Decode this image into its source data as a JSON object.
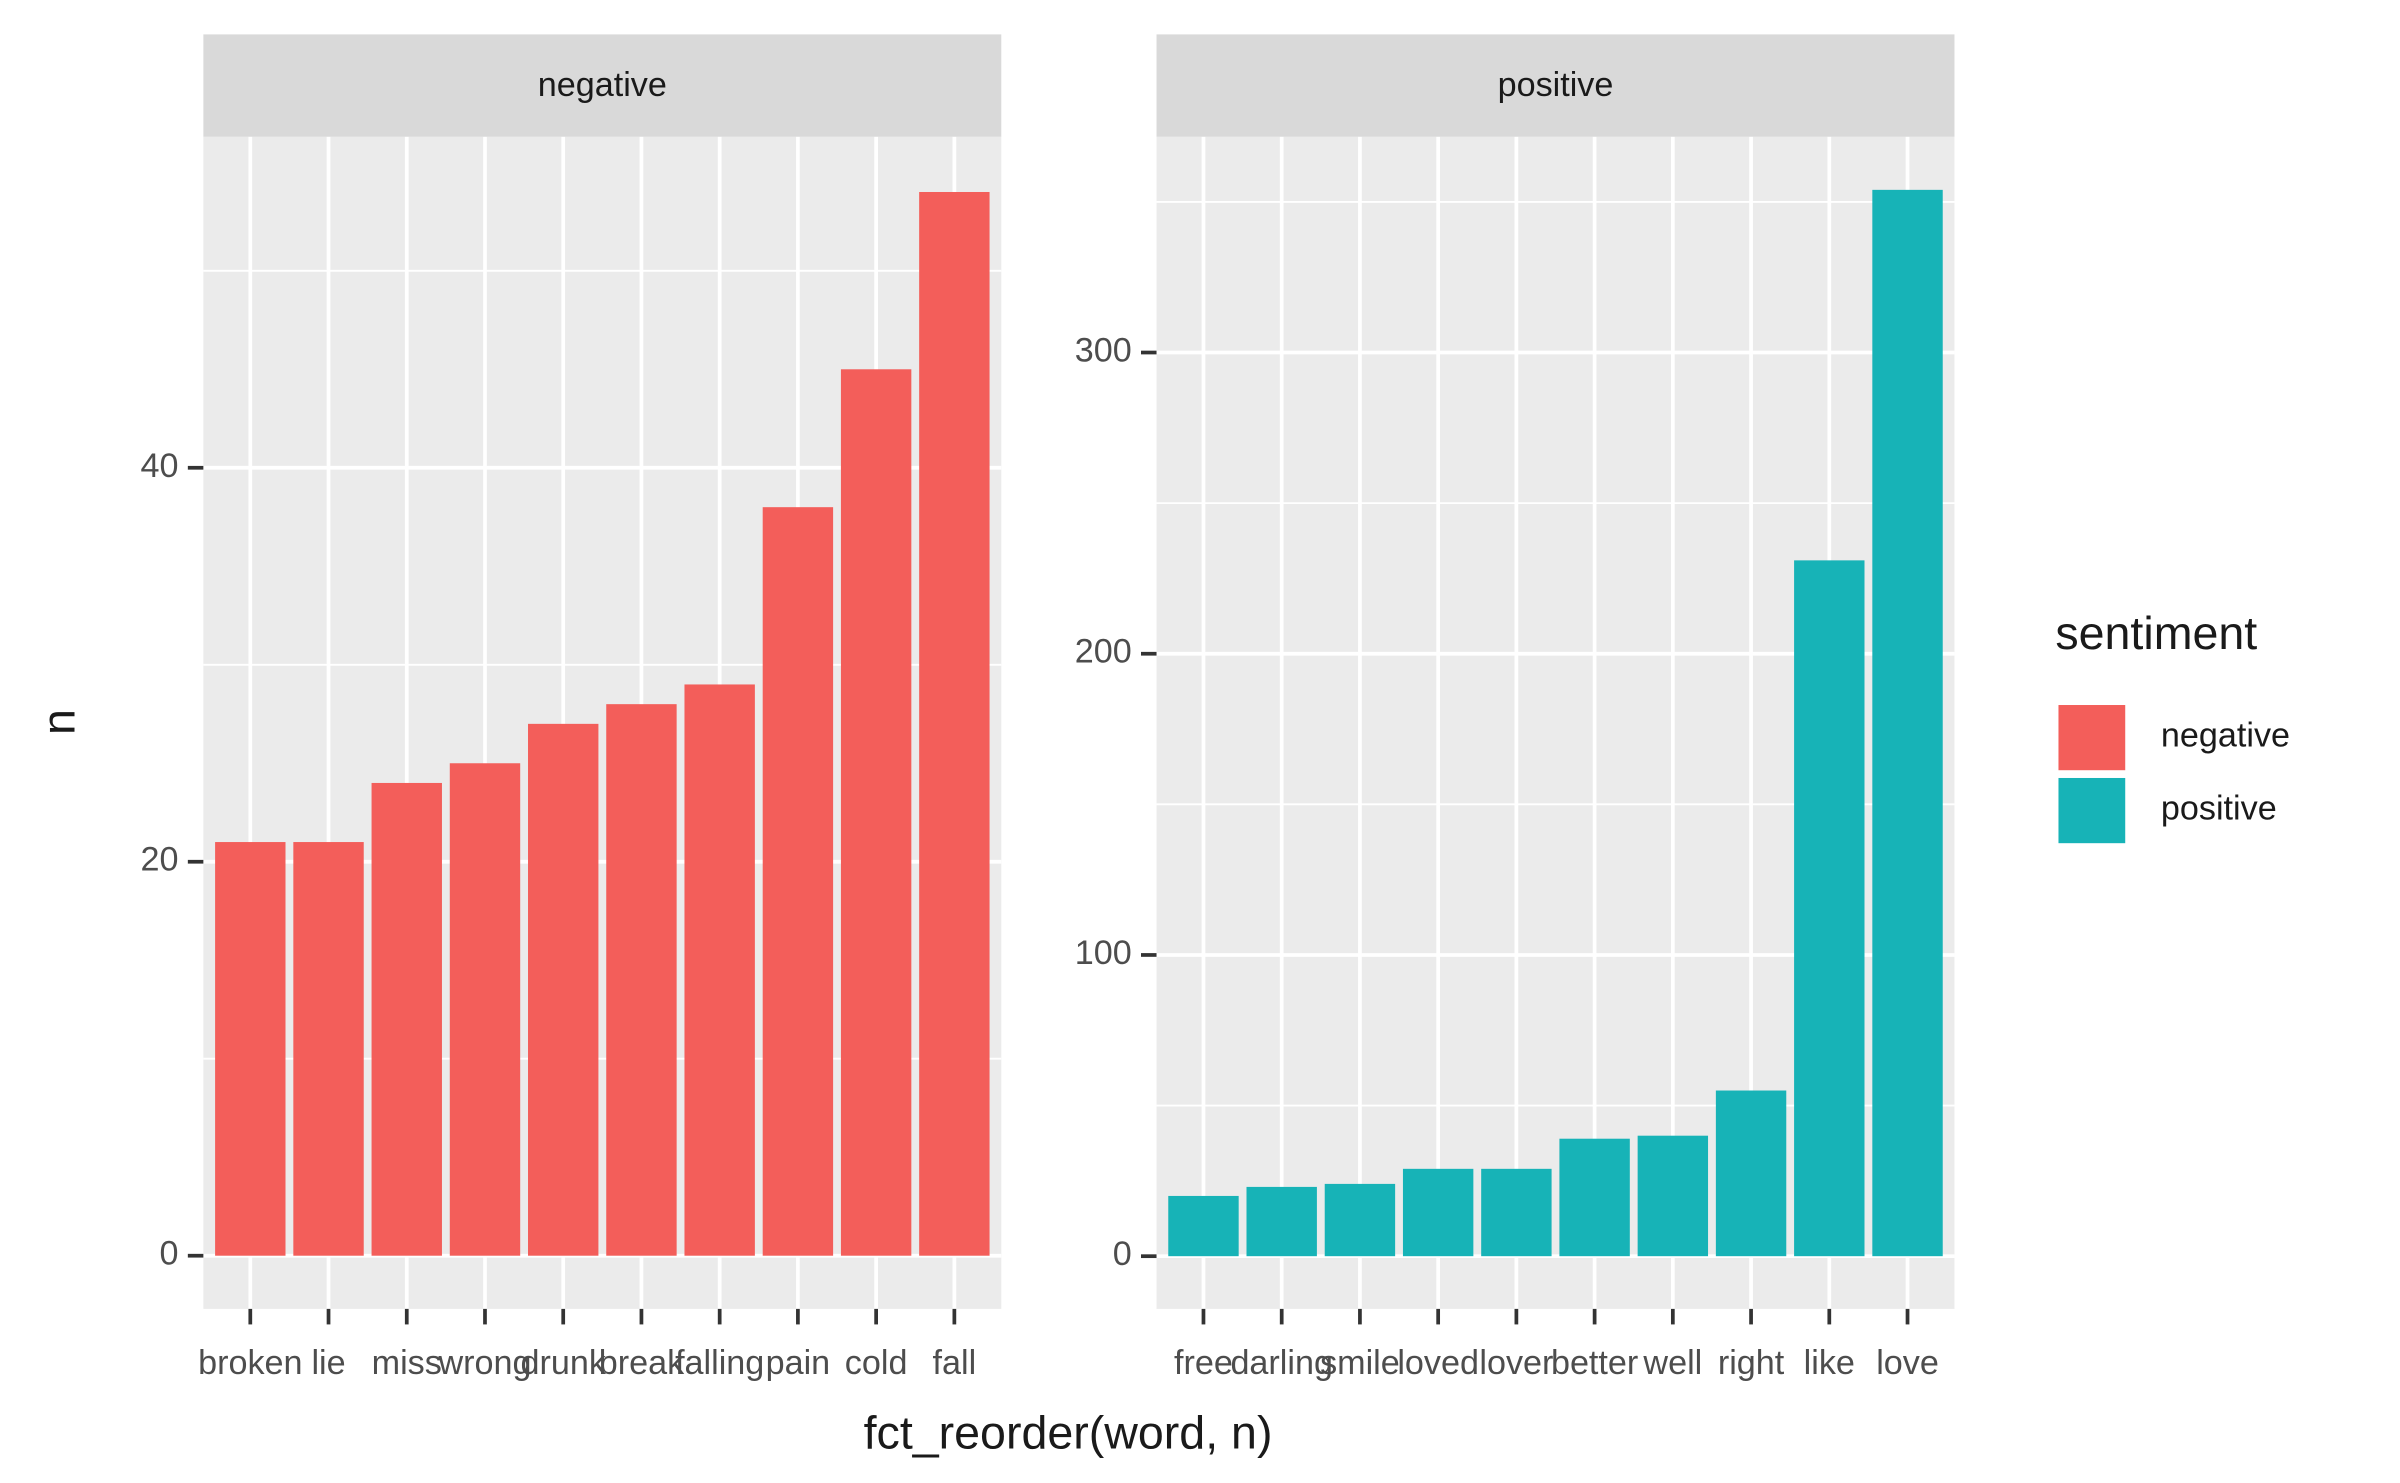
{
  "chart_data": {
    "type": "bar",
    "x_label": "fct_reorder(word, n)",
    "y_label": "n",
    "legend_title": "sentiment",
    "grid": true,
    "facets": [
      {
        "name": "negative",
        "color": "#f35e5a",
        "categories": [
          "broken",
          "lie",
          "miss",
          "wrong",
          "drunk",
          "break",
          "falling",
          "pain",
          "cold",
          "fall"
        ],
        "values": [
          21,
          21,
          24,
          25,
          27,
          28,
          29,
          38,
          45,
          54
        ],
        "ylim": [
          -2.7,
          56.8
        ],
        "yticks": [
          0,
          20,
          40
        ]
      },
      {
        "name": "positive",
        "color": "#17b3b7",
        "categories": [
          "free",
          "darling",
          "smile",
          "loved",
          "lover",
          "better",
          "well",
          "right",
          "like",
          "love"
        ],
        "values": [
          20,
          23,
          24,
          29,
          29,
          39,
          40,
          55,
          231,
          354
        ],
        "ylim": [
          -17.5,
          371.6
        ],
        "yticks": [
          0,
          100,
          200,
          300
        ]
      }
    ]
  }
}
